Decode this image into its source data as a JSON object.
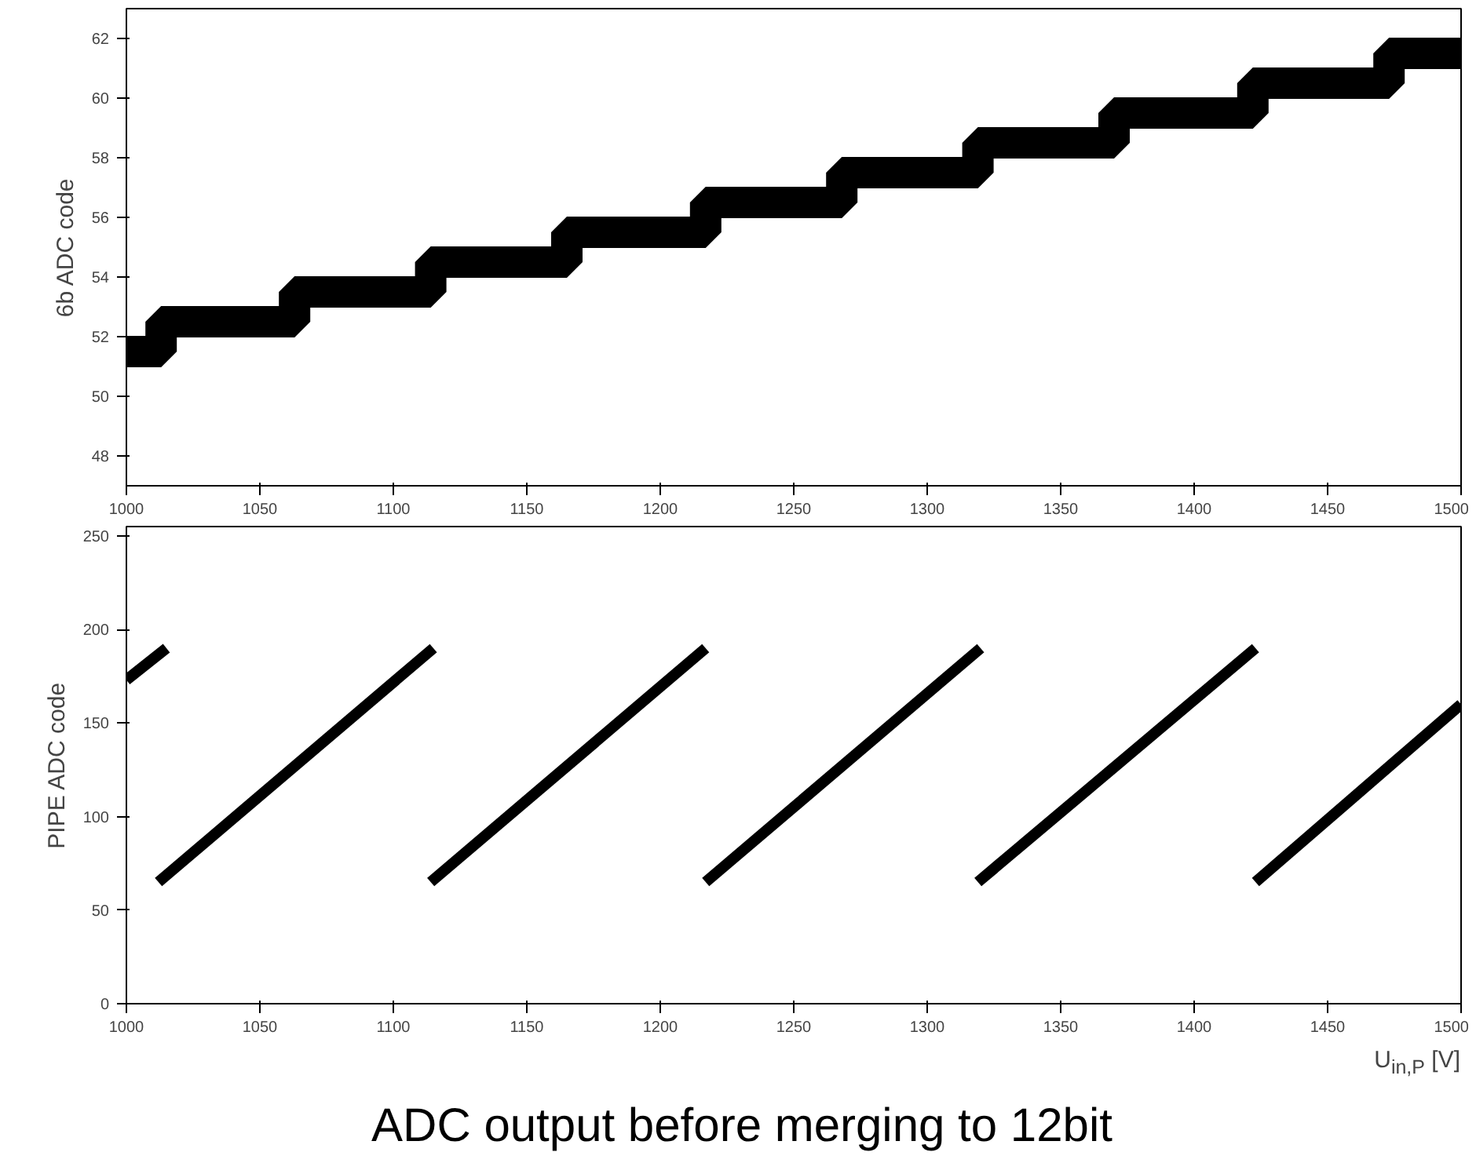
{
  "chart_data": [
    {
      "type": "step",
      "ylabel": "6b ADC code",
      "xlim": [
        1000,
        1500
      ],
      "ylim": [
        47,
        63
      ],
      "xticks": [
        1000,
        1050,
        1100,
        1150,
        1200,
        1250,
        1300,
        1350,
        1400,
        1450,
        1500
      ],
      "yticks": [
        48,
        50,
        52,
        54,
        56,
        58,
        60,
        62
      ],
      "grid": false,
      "series": [
        {
          "color": "#000000",
          "x": [
            1000,
            1013,
            1063,
            1114,
            1165,
            1217,
            1268,
            1319,
            1370,
            1422,
            1473,
            1500
          ],
          "values": [
            51.5,
            52.5,
            53.5,
            54.5,
            55.5,
            56.5,
            57.5,
            58.5,
            59.5,
            60.5,
            61.5,
            61.5
          ]
        }
      ]
    },
    {
      "type": "line",
      "ylabel": "PIPE ADC code",
      "xlabel": "U$_{in,P}$ [V]",
      "xlim": [
        1000,
        1500
      ],
      "ylim": [
        0,
        255
      ],
      "xticks": [
        1000,
        1050,
        1100,
        1150,
        1200,
        1250,
        1300,
        1350,
        1400,
        1450,
        1500
      ],
      "yticks": [
        0,
        50,
        100,
        150,
        200,
        250
      ],
      "grid": false,
      "marker": "none",
      "series": [
        {
          "color": "#000000",
          "x": [
            1000,
            1015
          ],
          "values": [
            173,
            190
          ]
        },
        {
          "color": "#000000",
          "x": [
            1012,
            1115
          ],
          "values": [
            65,
            190
          ]
        },
        {
          "color": "#000000",
          "x": [
            1114,
            1217
          ],
          "values": [
            65,
            190
          ]
        },
        {
          "color": "#000000",
          "x": [
            1217,
            1320
          ],
          "values": [
            65,
            190
          ]
        },
        {
          "color": "#000000",
          "x": [
            1319,
            1423
          ],
          "values": [
            65,
            190
          ]
        },
        {
          "color": "#000000",
          "x": [
            1423,
            1500
          ],
          "values": [
            65,
            160
          ]
        }
      ],
      "annotations": [
        "ADC output before merging to 12bit"
      ]
    }
  ]
}
